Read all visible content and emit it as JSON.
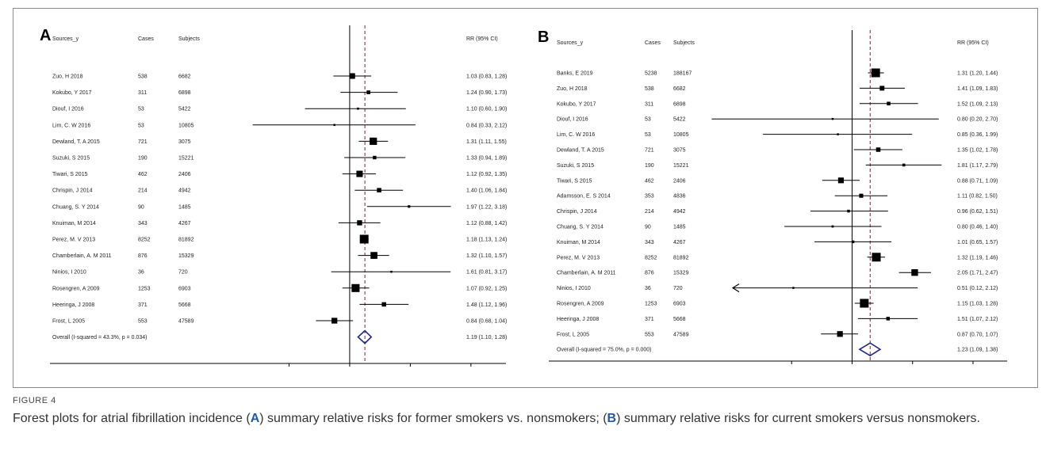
{
  "figure": {
    "label": "FIGURE 4",
    "caption_parts": [
      "Forest plots for atrial fibrillation incidence (",
      "A",
      ") summary relative risks for former smokers vs. nonsmokers; (",
      "B",
      ") summary relative risks for current smokers versus nonsmokers."
    ]
  },
  "chart_data": [
    {
      "type": "forest",
      "panel_label": "A",
      "headers": {
        "study": "Sources_y",
        "cases": "Cases",
        "subjects": "Subjects",
        "effect": "RR (95% CI)"
      },
      "x_scale": "log",
      "xlim": [
        0.25,
        5.5
      ],
      "x_ticks": [
        0.5,
        1,
        2,
        4
      ],
      "x_tick_labels": [
        ".5",
        "1",
        "2",
        "4"
      ],
      "null_line": 1,
      "overall_line": 1.19,
      "studies": [
        {
          "label": "Zuo, H 2018",
          "cases": "538",
          "subjects": "6682",
          "rr": 1.03,
          "lo": 0.83,
          "hi": 1.28,
          "ci_text": "1.03 (0.83, 1.28)"
        },
        {
          "label": "Kokubo, Y 2017",
          "cases": "311",
          "subjects": "6898",
          "rr": 1.24,
          "lo": 0.9,
          "hi": 1.73,
          "ci_text": "1.24 (0.90, 1.73)"
        },
        {
          "label": "Diouf, I 2016",
          "cases": "53",
          "subjects": "5422",
          "rr": 1.1,
          "lo": 0.6,
          "hi": 1.9,
          "ci_text": "1.10 (0.60, 1.90)"
        },
        {
          "label": "Lim, C. W 2016",
          "cases": "53",
          "subjects": "10805",
          "rr": 0.84,
          "lo": 0.33,
          "hi": 2.12,
          "ci_text": "0.84 (0.33, 2.12)"
        },
        {
          "label": "Dewland, T. A 2015",
          "cases": "721",
          "subjects": "3075",
          "rr": 1.31,
          "lo": 1.11,
          "hi": 1.55,
          "ci_text": "1.31 (1.11, 1.55)"
        },
        {
          "label": "Suzuki, S 2015",
          "cases": "190",
          "subjects": "15221",
          "rr": 1.33,
          "lo": 0.94,
          "hi": 1.89,
          "ci_text": "1.33 (0.94, 1.89)"
        },
        {
          "label": "Tiwari, S 2015",
          "cases": "462",
          "subjects": "2406",
          "rr": 1.12,
          "lo": 0.92,
          "hi": 1.35,
          "ci_text": "1.12 (0.92, 1.35)"
        },
        {
          "label": "Chrispin, J 2014",
          "cases": "214",
          "subjects": "4942",
          "rr": 1.4,
          "lo": 1.06,
          "hi": 1.84,
          "ci_text": "1.40 (1.06, 1.84)"
        },
        {
          "label": "Chuang, S. Y 2014",
          "cases": "90",
          "subjects": "1485",
          "rr": 1.97,
          "lo": 1.22,
          "hi": 3.18,
          "ci_text": "1.97 (1.22, 3.18)"
        },
        {
          "label": "Knuiman, M 2014",
          "cases": "343",
          "subjects": "4267",
          "rr": 1.12,
          "lo": 0.88,
          "hi": 1.42,
          "ci_text": "1.12 (0.88, 1.42)"
        },
        {
          "label": "Perez, M. V 2013",
          "cases": "8252",
          "subjects": "81892",
          "rr": 1.18,
          "lo": 1.13,
          "hi": 1.24,
          "ci_text": "1.18 (1.13, 1.24)"
        },
        {
          "label": "Chamberlain, A. M 2011",
          "cases": "876",
          "subjects": "15329",
          "rr": 1.32,
          "lo": 1.1,
          "hi": 1.57,
          "ci_text": "1.32 (1.10, 1.57)"
        },
        {
          "label": "Ninios, I 2010",
          "cases": "36",
          "subjects": "720",
          "rr": 1.61,
          "lo": 0.81,
          "hi": 3.17,
          "ci_text": "1.61 (0.81, 3.17)"
        },
        {
          "label": "Rosengren, A 2009",
          "cases": "1253",
          "subjects": "6903",
          "rr": 1.07,
          "lo": 0.92,
          "hi": 1.25,
          "ci_text": "1.07 (0.92, 1.25)"
        },
        {
          "label": "Heeringa, J 2008",
          "cases": "371",
          "subjects": "5668",
          "rr": 1.48,
          "lo": 1.12,
          "hi": 1.96,
          "ci_text": "1.48 (1.12, 1.96)"
        },
        {
          "label": "Frost, L 2005",
          "cases": "553",
          "subjects": "47589",
          "rr": 0.84,
          "lo": 0.68,
          "hi": 1.04,
          "ci_text": "0.84 (0.68, 1.04)"
        }
      ],
      "overall": {
        "label": "Overall  (I-squared = 43.3%, p = 0.034)",
        "rr": 1.19,
        "lo": 1.1,
        "hi": 1.28,
        "ci_text": "1.19 (1.10, 1.28)"
      }
    },
    {
      "type": "forest",
      "panel_label": "B",
      "headers": {
        "study": "Sources_y",
        "cases": "Cases",
        "subjects": "Subjects",
        "effect": "RR (95% CI)"
      },
      "x_scale": "log",
      "xlim": [
        0.25,
        5.5
      ],
      "x_ticks": [
        0.5,
        1,
        2,
        4
      ],
      "x_tick_labels": [
        ".5",
        "1",
        "2",
        "4"
      ],
      "null_line": 1,
      "overall_line": 1.23,
      "studies": [
        {
          "label": "Banks, E 2019",
          "cases": "5238",
          "subjects": "188167",
          "rr": 1.31,
          "lo": 1.2,
          "hi": 1.44,
          "ci_text": "1.31 (1.20, 1.44)"
        },
        {
          "label": "Zuo, H 2018",
          "cases": "538",
          "subjects": "6682",
          "rr": 1.41,
          "lo": 1.09,
          "hi": 1.83,
          "ci_text": "1.41 (1.09, 1.83)"
        },
        {
          "label": "Kokubo, Y 2017",
          "cases": "311",
          "subjects": "6898",
          "rr": 1.52,
          "lo": 1.09,
          "hi": 2.13,
          "ci_text": "1.52 (1.09, 2.13)"
        },
        {
          "label": "Diouf, I 2016",
          "cases": "53",
          "subjects": "5422",
          "rr": 0.8,
          "lo": 0.2,
          "hi": 2.7,
          "ci_text": "0.80 (0.20, 2.70)"
        },
        {
          "label": "Lim, C. W 2016",
          "cases": "53",
          "subjects": "10805",
          "rr": 0.85,
          "lo": 0.36,
          "hi": 1.99,
          "ci_text": "0.85 (0.36, 1.99)"
        },
        {
          "label": "Dewland, T. A 2015",
          "cases": "721",
          "subjects": "3075",
          "rr": 1.35,
          "lo": 1.02,
          "hi": 1.78,
          "ci_text": "1.35 (1.02, 1.78)"
        },
        {
          "label": "Suzuki, S 2015",
          "cases": "190",
          "subjects": "15221",
          "rr": 1.81,
          "lo": 1.17,
          "hi": 2.79,
          "ci_text": "1.81 (1.17, 2.79)"
        },
        {
          "label": "Tiwari, S 2015",
          "cases": "462",
          "subjects": "2406",
          "rr": 0.88,
          "lo": 0.71,
          "hi": 1.09,
          "ci_text": "0.88 (0.71, 1.09)"
        },
        {
          "label": "Adamsson, E. S 2014",
          "cases": "353",
          "subjects": "4836",
          "rr": 1.11,
          "lo": 0.82,
          "hi": 1.5,
          "ci_text": "1.11 (0.82, 1.50)"
        },
        {
          "label": "Chrispin, J 2014",
          "cases": "214",
          "subjects": "4942",
          "rr": 0.96,
          "lo": 0.62,
          "hi": 1.51,
          "ci_text": "0.96 (0.62, 1.51)"
        },
        {
          "label": "Chuang, S. Y 2014",
          "cases": "90",
          "subjects": "1485",
          "rr": 0.8,
          "lo": 0.46,
          "hi": 1.4,
          "ci_text": "0.80 (0.46, 1.40)"
        },
        {
          "label": "Knuiman, M 2014",
          "cases": "343",
          "subjects": "4267",
          "rr": 1.01,
          "lo": 0.65,
          "hi": 1.57,
          "ci_text": "1.01 (0.65, 1.57)"
        },
        {
          "label": "Perez, M. V 2013",
          "cases": "8252",
          "subjects": "81892",
          "rr": 1.32,
          "lo": 1.19,
          "hi": 1.46,
          "ci_text": "1.32 (1.19, 1.46)"
        },
        {
          "label": "Chamberlain, A. M 2011",
          "cases": "876",
          "subjects": "15329",
          "rr": 2.05,
          "lo": 1.71,
          "hi": 2.47,
          "ci_text": "2.05 (1.71, 2.47)"
        },
        {
          "label": "Ninios, I 2010",
          "cases": "36",
          "subjects": "720",
          "rr": 0.51,
          "lo": 0.12,
          "hi": 2.12,
          "ci_text": "0.51 (0.12, 2.12)",
          "lo_truncated_arrow": true
        },
        {
          "label": "Rosengren, A 2009",
          "cases": "1253",
          "subjects": "6903",
          "rr": 1.15,
          "lo": 1.03,
          "hi": 1.28,
          "ci_text": "1.15 (1.03, 1.28)"
        },
        {
          "label": "Heeringa, J 2008",
          "cases": "371",
          "subjects": "5668",
          "rr": 1.51,
          "lo": 1.07,
          "hi": 2.12,
          "ci_text": "1.51 (1.07, 2.12)"
        },
        {
          "label": "Frost, L 2005",
          "cases": "553",
          "subjects": "47589",
          "rr": 0.87,
          "lo": 0.7,
          "hi": 1.07,
          "ci_text": "0.87 (0.70, 1.07)"
        }
      ],
      "overall": {
        "label": "Overall  (I-squared = 75.0%, p = 0.000)",
        "rr": 1.23,
        "lo": 1.09,
        "hi": 1.38,
        "ci_text": "1.23 (1.09, 1.38)"
      }
    }
  ],
  "colors": {
    "text": "#222222",
    "null_line": "#000000",
    "overall_line": "#8b1a3a",
    "diamond": "#1f2a8a",
    "marker": "#000000"
  }
}
